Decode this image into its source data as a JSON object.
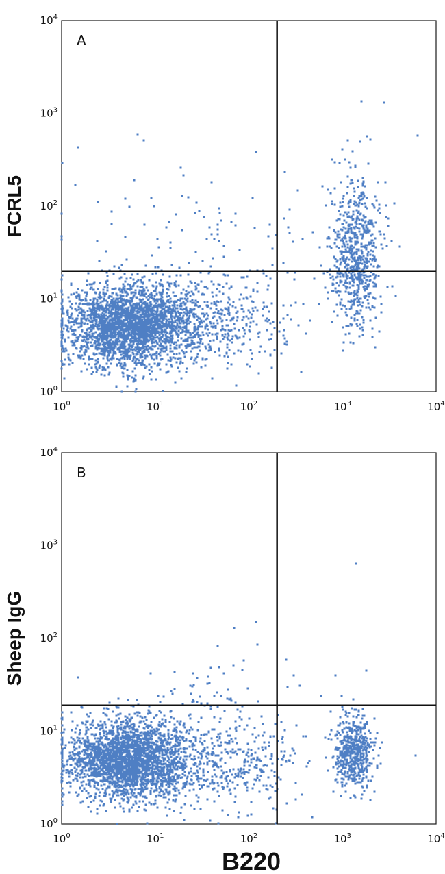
{
  "chart_data": [
    {
      "type": "scatter",
      "panel_label": "A",
      "xlabel": "B220",
      "ylabel": "FCRL5",
      "xscale": "log",
      "yscale": "log",
      "xlim": [
        1,
        10000
      ],
      "ylim": [
        1,
        10000
      ],
      "x_ticks": [
        {
          "base": "10",
          "exp": "0"
        },
        {
          "base": "10",
          "exp": "1"
        },
        {
          "base": "10",
          "exp": "2"
        },
        {
          "base": "10",
          "exp": "3"
        },
        {
          "base": "10",
          "exp": "4"
        }
      ],
      "y_ticks": [
        {
          "base": "10",
          "exp": "0"
        },
        {
          "base": "10",
          "exp": "1"
        },
        {
          "base": "10",
          "exp": "2"
        },
        {
          "base": "10",
          "exp": "3"
        },
        {
          "base": "10",
          "exp": "4"
        }
      ],
      "gates": {
        "x": 200,
        "y": 20
      },
      "point_color": "#4f7fc4",
      "grid": false,
      "populations": [
        {
          "center": [
            5,
            5
          ],
          "spread": [
            0.32,
            0.22
          ],
          "count": 2600
        },
        {
          "center": [
            1400,
            30
          ],
          "spread": [
            0.13,
            0.4
          ],
          "count": 750
        },
        {
          "center": [
            30,
            6
          ],
          "spread": [
            0.5,
            0.25
          ],
          "count": 650
        },
        {
          "center": [
            30,
            40
          ],
          "spread": [
            0.6,
            0.35
          ],
          "count": 90
        }
      ],
      "points": [
        [
          1.5,
          430
        ],
        [
          7.5,
          510
        ],
        [
          6,
          190
        ],
        [
          6.5,
          600
        ],
        [
          1.4,
          170
        ],
        [
          4.8,
          120
        ],
        [
          120,
          380
        ],
        [
          6400,
          580
        ],
        [
          2800,
          1300
        ],
        [
          1600,
          1350
        ]
      ]
    },
    {
      "type": "scatter",
      "panel_label": "B",
      "xlabel": "B220",
      "ylabel": "Sheep IgG",
      "xscale": "log",
      "yscale": "log",
      "xlim": [
        1,
        10000
      ],
      "ylim": [
        1,
        10000
      ],
      "x_ticks": [
        {
          "base": "10",
          "exp": "0"
        },
        {
          "base": "10",
          "exp": "1"
        },
        {
          "base": "10",
          "exp": "2"
        },
        {
          "base": "10",
          "exp": "3"
        },
        {
          "base": "10",
          "exp": "4"
        }
      ],
      "y_ticks": [
        {
          "base": "10",
          "exp": "0"
        },
        {
          "base": "10",
          "exp": "1"
        },
        {
          "base": "10",
          "exp": "2"
        },
        {
          "base": "10",
          "exp": "3"
        },
        {
          "base": "10",
          "exp": "4"
        }
      ],
      "gates": {
        "x": 200,
        "y": 19
      },
      "point_color": "#4f7fc4",
      "grid": false,
      "populations": [
        {
          "center": [
            5,
            5
          ],
          "spread": [
            0.32,
            0.22
          ],
          "count": 2600
        },
        {
          "center": [
            1300,
            6
          ],
          "spread": [
            0.11,
            0.2
          ],
          "count": 550
        },
        {
          "center": [
            40,
            5
          ],
          "spread": [
            0.5,
            0.25
          ],
          "count": 600
        },
        {
          "center": [
            40,
            30
          ],
          "spread": [
            0.4,
            0.25
          ],
          "count": 45
        }
      ],
      "points": [
        [
          1.5,
          38
        ],
        [
          1400,
          640
        ],
        [
          120,
          150
        ],
        [
          70,
          130
        ],
        [
          1800,
          45
        ],
        [
          300,
          40
        ],
        [
          1300,
          22
        ],
        [
          6000,
          5.5
        ]
      ]
    }
  ]
}
